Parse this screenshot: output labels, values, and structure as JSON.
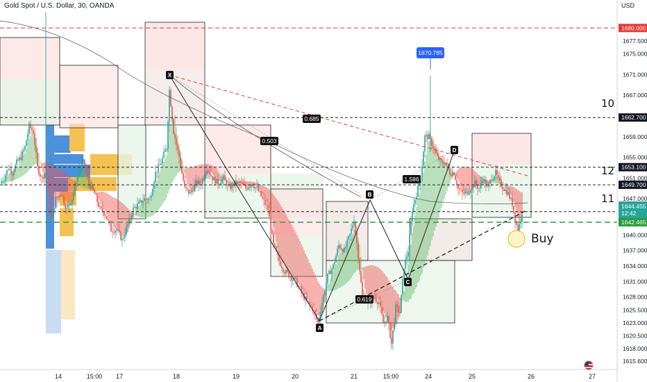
{
  "header": {
    "symbol_line": "Gold Spot / U.S. Dollar, 30, OANDA",
    "currency": "USD"
  },
  "colors": {
    "bull": "#26a69a",
    "bear": "#ef5350",
    "resistance_line": "#e53935",
    "support_line": "#2e9b3c",
    "dashed_level": "#222222",
    "callout_blue": "#2962ff"
  },
  "chart_data": {
    "type": "candlestick",
    "title": "",
    "price_scale": {
      "min": 1614,
      "max": 1683,
      "ticks": [
        "1677.500",
        "1675.000",
        "1671.000",
        "1667.000",
        "1659.000",
        "1655.000",
        "1651.000",
        "1647.000",
        "1640.000",
        "1637.000",
        "1634.000",
        "1631.000",
        "1628.000",
        "1625.500",
        "1623.000",
        "1620.500",
        "1618.000",
        "1615.600"
      ]
    },
    "time_axis": {
      "labels": [
        "14",
        "15:00",
        "17",
        "18",
        "19",
        "20",
        "21",
        "15:00",
        "24",
        "25",
        "26",
        "27"
      ]
    },
    "horizontal_levels": [
      {
        "price": 1680.0,
        "label": "1680.000",
        "style": "red-dashed"
      },
      {
        "price": 1662.7,
        "label": "1662.700",
        "style": "black-dashed"
      },
      {
        "price": 1653.1,
        "label": "1653.100",
        "style": "black-dashed"
      },
      {
        "price": 1649.7,
        "label": "1649.700",
        "style": "black-dashed"
      },
      {
        "price": 1644.5,
        "label": "1644.500",
        "style": "black-dashed"
      },
      {
        "price": 1642.465,
        "label": "1642.465",
        "style": "green-dashed"
      }
    ],
    "current_price": {
      "value": "1644.455",
      "countdown": "12:42"
    },
    "high_callout": {
      "value": "1670.785"
    },
    "harmonic_points": [
      "X",
      "A",
      "B",
      "C",
      "D"
    ],
    "ratios": [
      "0.685",
      "0.503",
      "1.586",
      "0.619"
    ],
    "level_numbers": [
      "10",
      "12",
      "11"
    ],
    "signal": "Buy",
    "price_path": [
      [
        0,
        1650
      ],
      [
        6,
        1651
      ],
      [
        12,
        1653
      ],
      [
        18,
        1652
      ],
      [
        24,
        1654
      ],
      [
        30,
        1655
      ],
      [
        36,
        1657
      ],
      [
        42,
        1661
      ],
      [
        48,
        1660
      ],
      [
        54,
        1653
      ],
      [
        60,
        1651
      ],
      [
        64,
        1652
      ],
      [
        68,
        1650
      ],
      [
        74,
        1643
      ],
      [
        80,
        1647
      ],
      [
        88,
        1648
      ],
      [
        96,
        1645
      ],
      [
        104,
        1647
      ],
      [
        112,
        1652
      ],
      [
        120,
        1654
      ],
      [
        128,
        1650
      ],
      [
        136,
        1648
      ],
      [
        144,
        1645
      ],
      [
        152,
        1644
      ],
      [
        160,
        1641
      ],
      [
        168,
        1641
      ],
      [
        176,
        1639
      ],
      [
        184,
        1642
      ],
      [
        192,
        1645
      ],
      [
        200,
        1646
      ],
      [
        208,
        1647
      ],
      [
        216,
        1647
      ],
      [
        224,
        1652
      ],
      [
        232,
        1654
      ],
      [
        240,
        1657
      ],
      [
        244,
        1668
      ],
      [
        250,
        1660
      ],
      [
        258,
        1655
      ],
      [
        266,
        1649
      ],
      [
        274,
        1648
      ],
      [
        282,
        1650
      ],
      [
        290,
        1650
      ],
      [
        298,
        1653
      ],
      [
        306,
        1651
      ],
      [
        314,
        1650
      ],
      [
        322,
        1651
      ],
      [
        330,
        1649
      ],
      [
        338,
        1650
      ],
      [
        346,
        1650
      ],
      [
        354,
        1649
      ],
      [
        362,
        1650
      ],
      [
        370,
        1649
      ],
      [
        378,
        1647
      ],
      [
        386,
        1645
      ],
      [
        394,
        1638
      ],
      [
        402,
        1635
      ],
      [
        410,
        1633
      ],
      [
        418,
        1632
      ],
      [
        426,
        1631
      ],
      [
        434,
        1629
      ],
      [
        442,
        1627
      ],
      [
        450,
        1626
      ],
      [
        458,
        1623
      ],
      [
        464,
        1627
      ],
      [
        472,
        1632
      ],
      [
        480,
        1634
      ],
      [
        488,
        1638
      ],
      [
        496,
        1637
      ],
      [
        504,
        1640
      ],
      [
        510,
        1643
      ],
      [
        516,
        1636
      ],
      [
        522,
        1628
      ],
      [
        530,
        1627
      ],
      [
        538,
        1628
      ],
      [
        546,
        1627
      ],
      [
        552,
        1623
      ],
      [
        558,
        1624
      ],
      [
        564,
        1619
      ],
      [
        570,
        1626
      ],
      [
        576,
        1625
      ],
      [
        582,
        1634
      ],
      [
        588,
        1637
      ],
      [
        594,
        1645
      ],
      [
        600,
        1648
      ],
      [
        606,
        1651
      ],
      [
        612,
        1659
      ],
      [
        618,
        1659
      ],
      [
        624,
        1657
      ],
      [
        630,
        1655
      ],
      [
        636,
        1654
      ],
      [
        642,
        1654
      ],
      [
        648,
        1652
      ],
      [
        654,
        1652
      ],
      [
        660,
        1649
      ],
      [
        666,
        1648
      ],
      [
        672,
        1648
      ],
      [
        678,
        1649
      ],
      [
        684,
        1650
      ],
      [
        690,
        1649
      ],
      [
        696,
        1651
      ],
      [
        702,
        1649
      ],
      [
        708,
        1651
      ],
      [
        714,
        1652
      ],
      [
        720,
        1650
      ],
      [
        726,
        1649
      ],
      [
        732,
        1648
      ],
      [
        738,
        1646
      ],
      [
        742,
        1643
      ],
      [
        746,
        1641
      ],
      [
        750,
        1643
      ],
      [
        752,
        1644.455
      ]
    ]
  }
}
